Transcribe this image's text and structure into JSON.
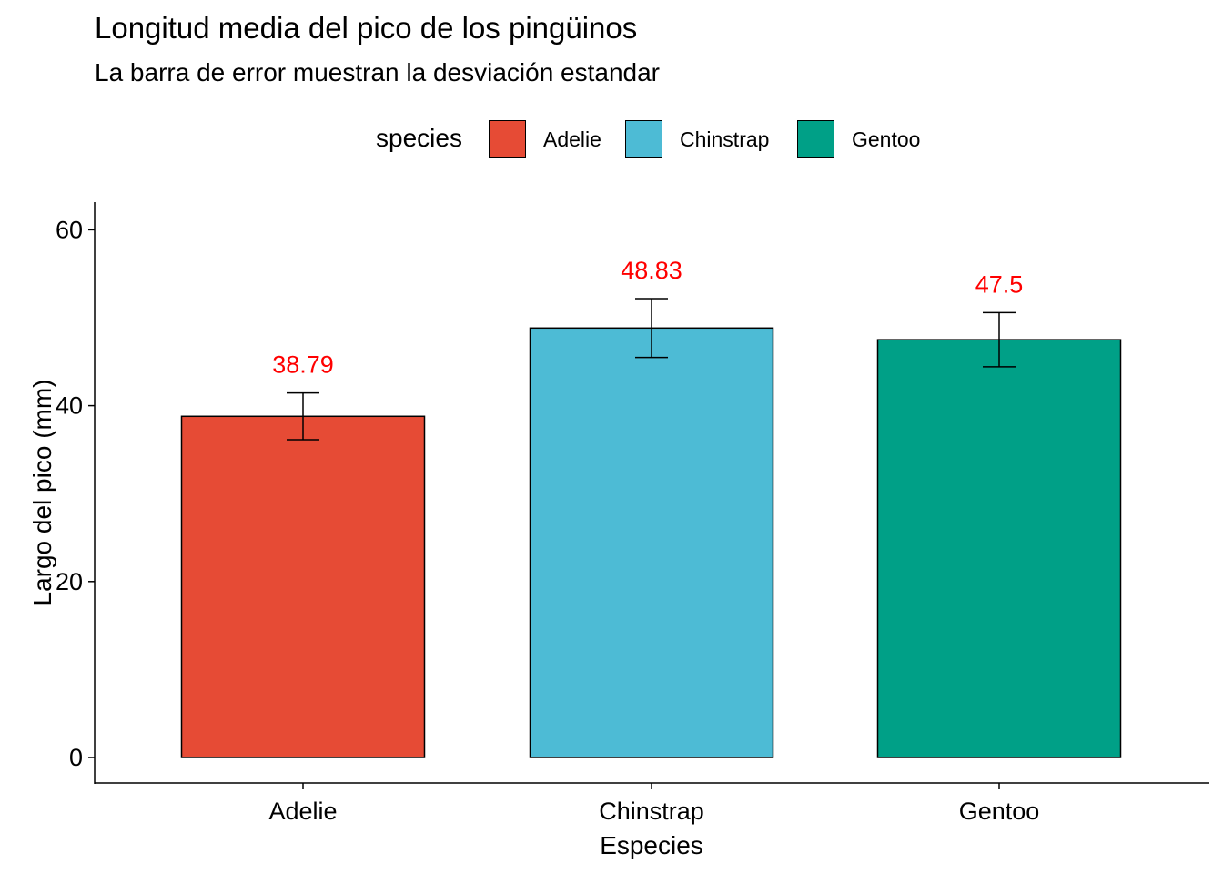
{
  "chart_data": {
    "type": "bar",
    "title": "Longitud media del pico de los pingüinos",
    "subtitle": "La barra de error muestran la desviación estandar",
    "xlabel": "Especies",
    "ylabel": "Largo del pico (mm)",
    "categories": [
      "Adelie",
      "Chinstrap",
      "Gentoo"
    ],
    "values": [
      38.79,
      48.83,
      47.5
    ],
    "value_labels": [
      "38.79",
      "48.83",
      "47.5"
    ],
    "error_sd": [
      2.66,
      3.34,
      3.08
    ],
    "ylim": [
      0,
      63
    ],
    "yticks": [
      0,
      20,
      40,
      60
    ],
    "ytick_labels": [
      "0",
      "20",
      "40",
      "60"
    ],
    "grid": false,
    "legend": {
      "title": "species",
      "position": "top",
      "entries": [
        "Adelie",
        "Chinstrap",
        "Gentoo"
      ]
    },
    "colors": {
      "Adelie": "#E64B35",
      "Chinstrap": "#4DBBD5",
      "Gentoo": "#00A087",
      "value_label": "#FF0000"
    }
  }
}
